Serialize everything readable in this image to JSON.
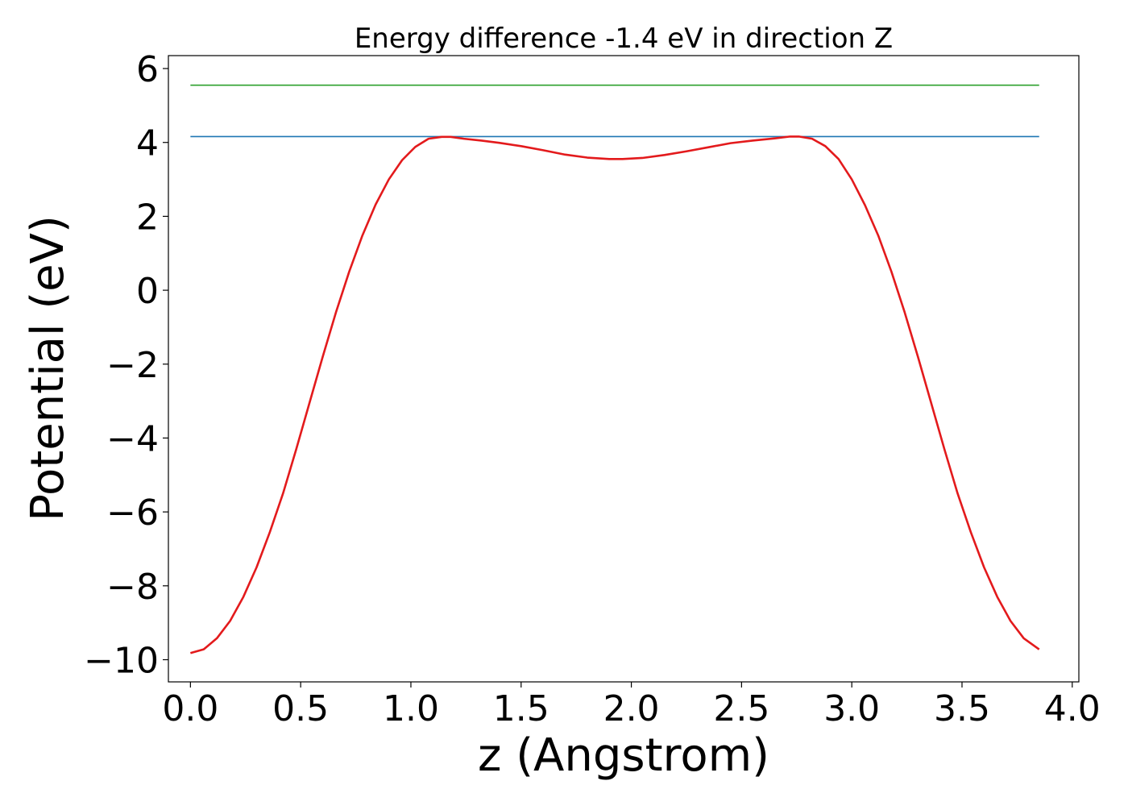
{
  "chart_data": {
    "type": "line",
    "title": "Energy difference -1.4 eV in direction Z",
    "xlabel": "z (Angstrom)",
    "ylabel": "Potential (eV)",
    "xlim": [
      -0.1,
      4.03
    ],
    "ylim": [
      -10.6,
      6.35
    ],
    "xticks": [
      0.0,
      0.5,
      1.0,
      1.5,
      2.0,
      2.5,
      3.0,
      3.5,
      4.0
    ],
    "xtick_labels": [
      "0.0",
      "0.5",
      "1.0",
      "1.5",
      "2.0",
      "2.5",
      "3.0",
      "3.5",
      "4.0"
    ],
    "yticks": [
      6,
      4,
      2,
      0,
      -2,
      -4,
      -6,
      -8,
      -10
    ],
    "ytick_labels": [
      "6",
      "4",
      "2",
      "0",
      "−2",
      "−4",
      "−6",
      "−8",
      "−10"
    ],
    "grid": false,
    "series": [
      {
        "color": "#2ca02c",
        "x": [
          0.0,
          3.85
        ],
        "y": [
          5.55,
          5.55
        ]
      },
      {
        "color": "#1f77b4",
        "x": [
          0.0,
          3.85
        ],
        "y": [
          4.16,
          4.16
        ]
      },
      {
        "color": "#e31a1c",
        "x": [
          0.0,
          0.06,
          0.12,
          0.18,
          0.24,
          0.3,
          0.36,
          0.42,
          0.48,
          0.54,
          0.6,
          0.66,
          0.72,
          0.78,
          0.84,
          0.9,
          0.96,
          1.02,
          1.08,
          1.14,
          1.18,
          1.24,
          1.32,
          1.4,
          1.5,
          1.6,
          1.7,
          1.8,
          1.9,
          1.96,
          2.05,
          2.15,
          2.25,
          2.35,
          2.45,
          2.55,
          2.65,
          2.72,
          2.76,
          2.82,
          2.88,
          2.94,
          3.0,
          3.06,
          3.12,
          3.18,
          3.24,
          3.3,
          3.36,
          3.42,
          3.48,
          3.54,
          3.6,
          3.66,
          3.72,
          3.78,
          3.85
        ],
        "y": [
          -9.82,
          -9.72,
          -9.42,
          -8.95,
          -8.3,
          -7.5,
          -6.55,
          -5.5,
          -4.3,
          -3.05,
          -1.8,
          -0.6,
          0.5,
          1.48,
          2.32,
          3.0,
          3.52,
          3.88,
          4.1,
          4.15,
          4.15,
          4.1,
          4.05,
          3.99,
          3.9,
          3.79,
          3.67,
          3.59,
          3.55,
          3.55,
          3.58,
          3.66,
          3.76,
          3.87,
          3.98,
          4.05,
          4.11,
          4.16,
          4.16,
          4.1,
          3.9,
          3.55,
          3.0,
          2.3,
          1.48,
          0.5,
          -0.6,
          -1.8,
          -3.05,
          -4.3,
          -5.5,
          -6.55,
          -7.5,
          -8.3,
          -8.95,
          -9.42,
          -9.72
        ]
      }
    ]
  }
}
